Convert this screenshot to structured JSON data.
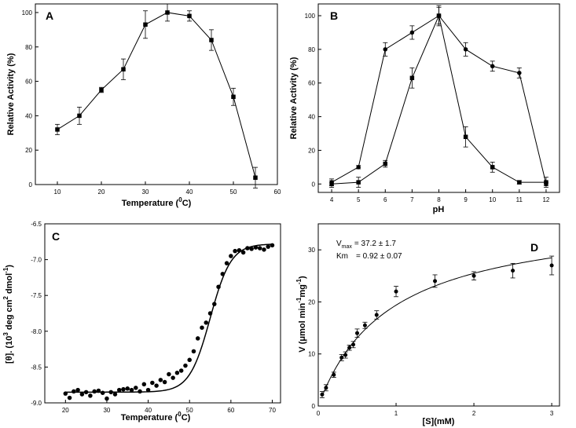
{
  "chart_data": [
    {
      "panel": "A",
      "type": "line",
      "xlabel": "Temperature (",
      "xlabel_sup": "0",
      "xlabel_tail": "C)",
      "ylabel": "Relative Activity (%)",
      "xlim": [
        5,
        60
      ],
      "ylim": [
        0,
        105
      ],
      "xticks": [
        10,
        20,
        30,
        40,
        50,
        60
      ],
      "yticks": [
        0,
        20,
        40,
        60,
        80,
        100
      ],
      "series": [
        {
          "name": "activity",
          "marker": "square",
          "x": [
            10,
            15,
            20,
            25,
            30,
            35,
            40,
            45,
            50,
            55
          ],
          "y": [
            32,
            40,
            55,
            67,
            93,
            100,
            98,
            84,
            51,
            4
          ],
          "err": [
            3,
            5,
            1.5,
            6,
            8,
            5,
            3,
            6,
            5,
            6
          ]
        }
      ]
    },
    {
      "panel": "B",
      "type": "line",
      "xlabel": "pH",
      "ylabel": "Relative Activity (%)",
      "xlim": [
        3.5,
        12.5
      ],
      "ylim": [
        -5,
        107
      ],
      "xticks": [
        4,
        5,
        6,
        7,
        8,
        9,
        10,
        11,
        12
      ],
      "yticks": [
        0,
        20,
        40,
        60,
        80,
        100
      ],
      "series": [
        {
          "name": "circle",
          "marker": "circle",
          "x": [
            4,
            5,
            6,
            7,
            8,
            9,
            10,
            11,
            12
          ],
          "y": [
            1,
            10,
            80,
            90,
            100,
            80,
            70,
            66,
            0
          ],
          "err": [
            2,
            1,
            4,
            4,
            6,
            4,
            3,
            3,
            1
          ]
        },
        {
          "name": "square",
          "marker": "square",
          "x": [
            4,
            5,
            6,
            7,
            8,
            9,
            10,
            11,
            12
          ],
          "y": [
            0,
            1,
            12,
            63,
            100,
            28,
            10,
            1,
            1
          ],
          "err": [
            2,
            3,
            2,
            6,
            5,
            6,
            3,
            1,
            3
          ]
        }
      ]
    },
    {
      "panel": "C",
      "type": "scatter",
      "xlabel": "Temperature (",
      "xlabel_sup": "0",
      "xlabel_tail": "C)",
      "ylabel": "[θ]. (10",
      "ylabel_sup1": "3",
      "ylabel_mid": " deg cm",
      "ylabel_sup2": "2",
      "ylabel_mid2": " dmol",
      "ylabel_sup3": "-1",
      "ylabel_tail": ")",
      "xlim": [
        15,
        72
      ],
      "ylim": [
        -9.0,
        -6.5
      ],
      "xticks": [
        20,
        30,
        40,
        50,
        60,
        70
      ],
      "yticks": [
        -9.0,
        -8.5,
        -8.0,
        -7.5,
        -7.0,
        -6.5
      ],
      "points": {
        "x": [
          20,
          21,
          22,
          23,
          24,
          25,
          26,
          27,
          28,
          29,
          30,
          31,
          32,
          33,
          34,
          35,
          36,
          37,
          38,
          39,
          40,
          41,
          42,
          43,
          44,
          45,
          46,
          47,
          48,
          49,
          50,
          51,
          52,
          53,
          54,
          55,
          56,
          57,
          58,
          59,
          60,
          61,
          62,
          63,
          64,
          65,
          66,
          67,
          68,
          69,
          70
        ],
        "y": [
          -8.87,
          -8.93,
          -8.84,
          -8.82,
          -8.88,
          -8.85,
          -8.9,
          -8.84,
          -8.83,
          -8.86,
          -8.94,
          -8.85,
          -8.88,
          -8.82,
          -8.81,
          -8.8,
          -8.82,
          -8.79,
          -8.84,
          -8.74,
          -8.82,
          -8.72,
          -8.76,
          -8.68,
          -8.71,
          -8.6,
          -8.65,
          -8.58,
          -8.55,
          -8.48,
          -8.4,
          -8.28,
          -8.1,
          -7.95,
          -7.88,
          -7.75,
          -7.62,
          -7.38,
          -7.2,
          -7.05,
          -6.95,
          -6.88,
          -6.87,
          -6.9,
          -6.84,
          -6.85,
          -6.83,
          -6.84,
          -6.86,
          -6.82,
          -6.8
        ]
      },
      "fit": {
        "bottom": -8.85,
        "top": -6.78,
        "tm": 55,
        "width": 2.5
      }
    },
    {
      "panel": "D",
      "type": "scatter",
      "xlabel": "[S](mM)",
      "ylabel": "V (",
      "ylabel_mu": "μ",
      "ylabel_mid": "mol min",
      "ylabel_sup1": "-1",
      "ylabel_mid2": "mg",
      "ylabel_sup2": "-1",
      "ylabel_tail": ")",
      "xlim": [
        0,
        3.1
      ],
      "ylim": [
        0,
        35
      ],
      "xticks": [
        0,
        1,
        2,
        3
      ],
      "yticks": [
        0,
        10,
        20,
        30
      ],
      "annotations": {
        "vmax_label": "V",
        "vmax_sub": "max",
        "vmax_value": "= 37.2 ±  1.7",
        "km_label": "Km",
        "km_value": "= 0.92 ±  0.07"
      },
      "points": {
        "x": [
          0.05,
          0.1,
          0.2,
          0.3,
          0.35,
          0.4,
          0.45,
          0.5,
          0.6,
          0.75,
          1.0,
          1.5,
          2.0,
          2.5,
          3.0
        ],
        "y": [
          2.2,
          3.5,
          6,
          9.3,
          9.8,
          11.2,
          11.8,
          14,
          15.5,
          17.5,
          22,
          24,
          25,
          26,
          27
        ],
        "err": [
          0.6,
          0.6,
          0.5,
          0.6,
          0.6,
          0.5,
          0.6,
          0.8,
          0.6,
          0.8,
          1.0,
          1.2,
          0.8,
          1.4,
          1.8
        ]
      },
      "fit": {
        "vmax": 37.2,
        "km": 0.92
      }
    }
  ]
}
